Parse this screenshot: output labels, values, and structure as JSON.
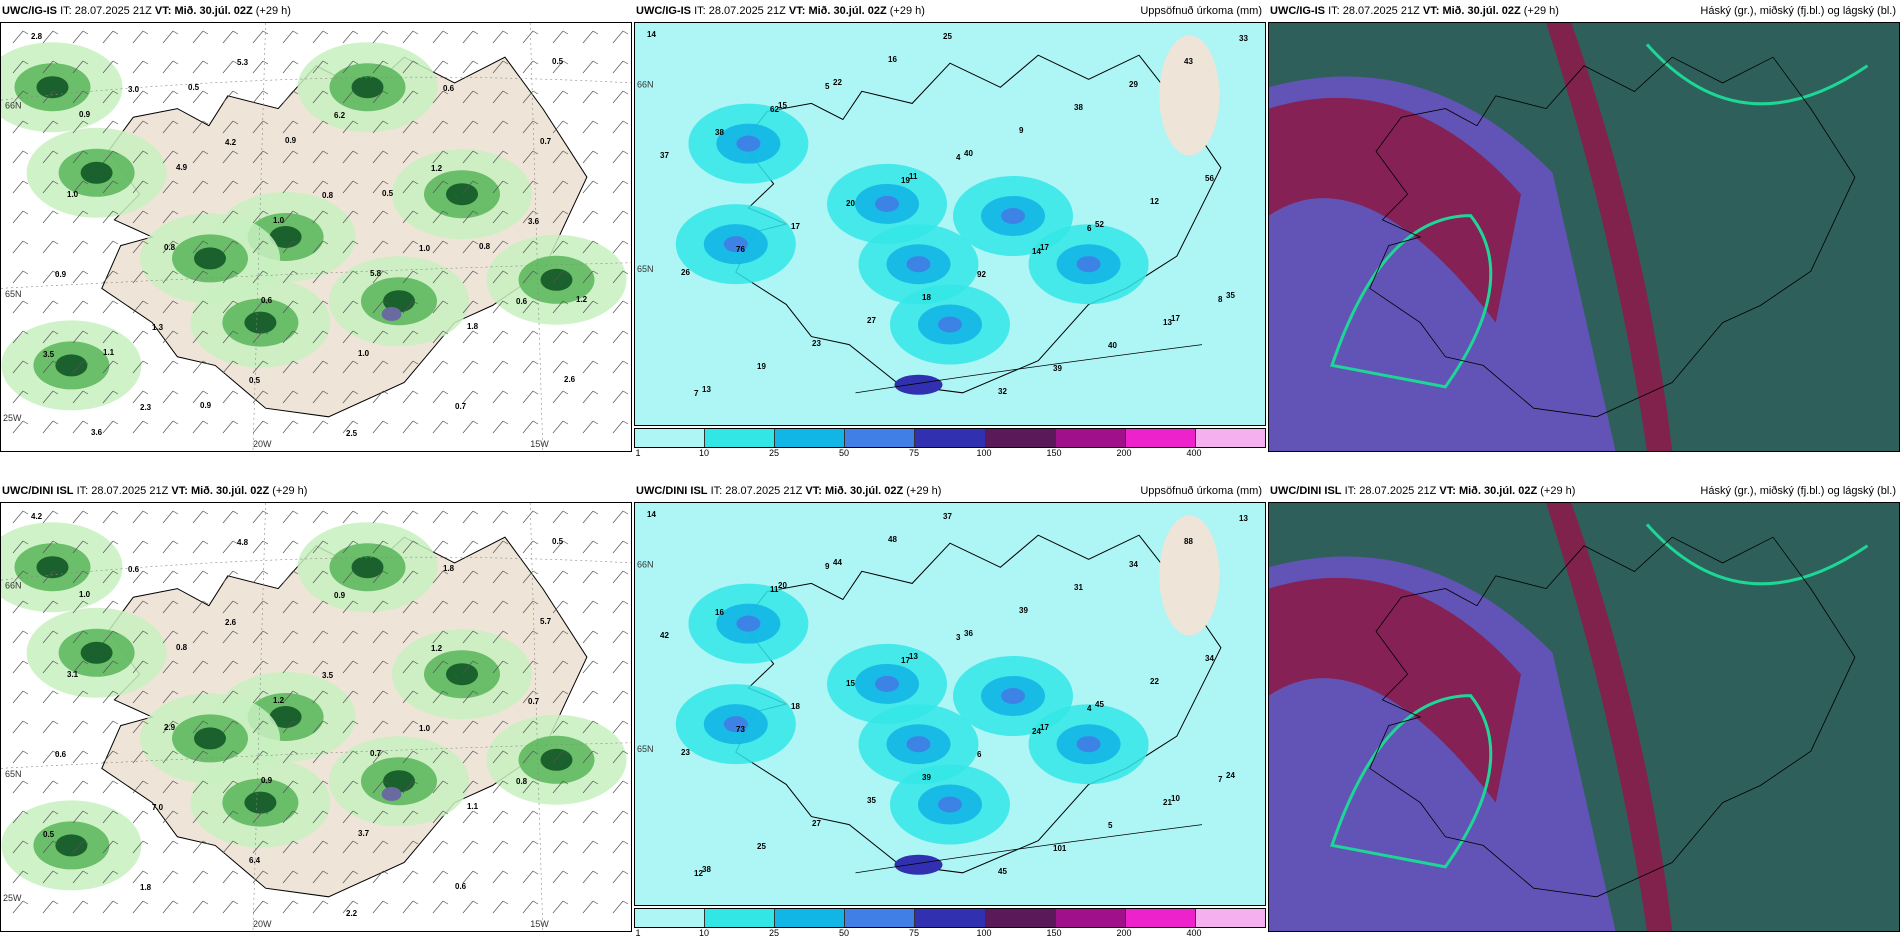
{
  "panels": [
    {
      "model": "UWC/IG-IS",
      "it_label": "IT:",
      "init_time": "28.07.2025 21Z",
      "vt_label": "VT:",
      "valid_time": "Mið. 30.júl. 02Z",
      "lead": "(+29 h)",
      "right_title": "",
      "kind": "precip-rate-wind",
      "grid_labels": [
        "66N",
        "65N",
        "20W",
        "15W",
        "25W"
      ],
      "values": [
        "2.8",
        "3.0",
        "4.2",
        "0.8",
        "1.0",
        "0.6",
        "3.5",
        "2.3",
        "5.3",
        "6.2",
        "1.2",
        "3.6",
        "0.9",
        "1.3",
        "0.5",
        "2.5",
        "0.6",
        "0.7",
        "1.0",
        "0.8",
        "0.6",
        "1.0",
        "0.7",
        "0.5",
        "0.9",
        "4.9",
        "1.0",
        "5.8",
        "1.8",
        "2.6",
        "3.6",
        "0.5",
        "0.9",
        "0.5",
        "0.8",
        "1.2",
        "1.1",
        "0.9"
      ]
    },
    {
      "model": "UWC/IG-IS",
      "it_label": "IT:",
      "init_time": "28.07.2025 21Z",
      "vt_label": "VT:",
      "valid_time": "Mið. 30.júl. 02Z",
      "lead": "(+29 h)",
      "right_title": "Uppsöfnuð úrkoma (mm)",
      "kind": "accum-precip",
      "grid_labels": [
        "66N",
        "65N"
      ],
      "values": [
        "14",
        "15",
        "11",
        "17",
        "17",
        "13",
        "22",
        "40",
        "52",
        "35",
        "19",
        "16",
        "9",
        "12",
        "26",
        "23",
        "25",
        "38",
        "56",
        "76",
        "27",
        "32",
        "29",
        "37",
        "17",
        "18",
        "39",
        "43",
        "38",
        "20",
        "92",
        "40",
        "33",
        "62",
        "19",
        "14",
        "13",
        "7",
        "5",
        "4",
        "6",
        "8"
      ],
      "colorbar_ticks": [
        "1",
        "10",
        "25",
        "50",
        "75",
        "100",
        "150",
        "200",
        "400"
      ]
    },
    {
      "model": "UWC/IG-IS",
      "it_label": "IT:",
      "init_time": "28.07.2025 21Z",
      "vt_label": "VT:",
      "valid_time": "Mið. 30.júl. 02Z",
      "lead": "(+29 h)",
      "right_title": "Háský (gr.), miðský (fj.bl.) og lágský (bl.)",
      "kind": "clouds"
    },
    {
      "model": "UWC/DINI ISL",
      "it_label": "IT:",
      "init_time": "28.07.2025 21Z",
      "vt_label": "VT:",
      "valid_time": "Mið. 30.júl. 02Z",
      "lead": "(+29 h)",
      "right_title": "",
      "kind": "precip-rate-wind",
      "grid_labels": [
        "66N",
        "65N",
        "20W",
        "15W",
        "25W"
      ],
      "values": [
        "4.2",
        "0.6",
        "2.6",
        "3.5",
        "1.0",
        "0.8",
        "0.5",
        "1.8",
        "4.8",
        "0.9",
        "1.2",
        "0.7",
        "0.6",
        "7.0",
        "6.4",
        "2.2",
        "1.8",
        "5.7",
        "3.1",
        "2.9",
        "0.9",
        "3.7",
        "0.6",
        "0.5",
        "1.0",
        "0.8",
        "1.2",
        "0.7",
        "1.1"
      ]
    },
    {
      "model": "UWC/DINI ISL",
      "it_label": "IT:",
      "init_time": "28.07.2025 21Z",
      "vt_label": "VT:",
      "valid_time": "Mið. 30.júl. 02Z",
      "lead": "(+29 h)",
      "right_title": "Uppsöfnuð úrkoma (mm)",
      "kind": "accum-precip",
      "grid_labels": [
        "66N",
        "65N"
      ],
      "values": [
        "14",
        "20",
        "13",
        "17",
        "10",
        "38",
        "44",
        "36",
        "45",
        "24",
        "25",
        "48",
        "39",
        "22",
        "23",
        "27",
        "37",
        "31",
        "34",
        "73",
        "35",
        "45",
        "34",
        "42",
        "18",
        "39",
        "101",
        "88",
        "16",
        "15",
        "6",
        "5",
        "13",
        "11",
        "17",
        "24",
        "21",
        "12",
        "9",
        "3",
        "4",
        "7"
      ],
      "colorbar_ticks": [
        "1",
        "10",
        "25",
        "50",
        "75",
        "100",
        "150",
        "200",
        "400"
      ]
    },
    {
      "model": "UWC/DINI ISL",
      "it_label": "IT:",
      "init_time": "28.07.2025 21Z",
      "vt_label": "VT:",
      "valid_time": "Mið. 30.júl. 02Z",
      "lead": "(+29 h)",
      "right_title": "Háský (gr.), miðský (fj.bl.) og lágský (bl.)",
      "kind": "clouds"
    }
  ],
  "colors": {
    "land": "#efe4d8",
    "sea": "#ffffff",
    "rain_light": "#c8f0c0",
    "rain_mid": "#5fb85f",
    "rain_dark": "#165c2a",
    "rain_max": "#6a6aa0",
    "acc_base": "#aef5f5",
    "acc_10": "#33e6e6",
    "acc_25": "#12b6e6",
    "acc_50": "#3f7fe6",
    "acc_75": "#3030b0",
    "acc_100": "#5a1a5a",
    "acc_150": "#a0108a",
    "acc_200": "#ee22cc",
    "acc_400": "#f5b0f0",
    "cloud_high": "#2f5f5a",
    "cloud_mid": "#6b52c8",
    "cloud_low": "#8a1c4a",
    "cloud_edge": "#1ed696"
  }
}
